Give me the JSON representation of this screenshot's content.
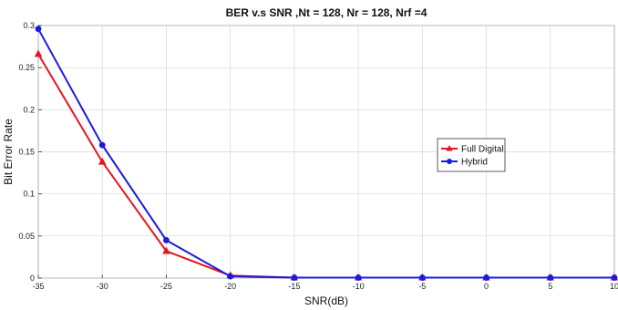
{
  "chart_data": {
    "type": "line",
    "title": "BER v.s SNR ,Nt = 128, Nr = 128, Nrf =4",
    "xlabel": "SNR(dB)",
    "ylabel": "Bit Error Rate",
    "xlim": [
      -35,
      10
    ],
    "ylim": [
      0,
      0.3
    ],
    "x_ticks": [
      "-35",
      "-30",
      "-25",
      "-20",
      "-15",
      "-10",
      "-5",
      "0",
      "5",
      "10"
    ],
    "y_ticks": [
      "0",
      "0.05",
      "0.1",
      "0.15",
      "0.2",
      "0.25",
      "0.3"
    ],
    "x": [
      -35,
      -30,
      -25,
      -20,
      -15,
      -10,
      -5,
      0,
      5,
      10
    ],
    "grid": true,
    "legend_position": "right",
    "series": [
      {
        "name": "Full Digital",
        "color": "#e8141c",
        "marker": "triangle",
        "values": [
          0.266,
          0.138,
          0.032,
          0.003,
          0.0005,
          0.0005,
          0.0005,
          0.0005,
          0.0005,
          0.0005
        ]
      },
      {
        "name": "Hybrid",
        "color": "#1b1bdd",
        "marker": "circle",
        "values": [
          0.296,
          0.158,
          0.045,
          0.002,
          0.0005,
          0.0005,
          0.0005,
          0.0005,
          0.0005,
          0.0005
        ]
      }
    ]
  }
}
